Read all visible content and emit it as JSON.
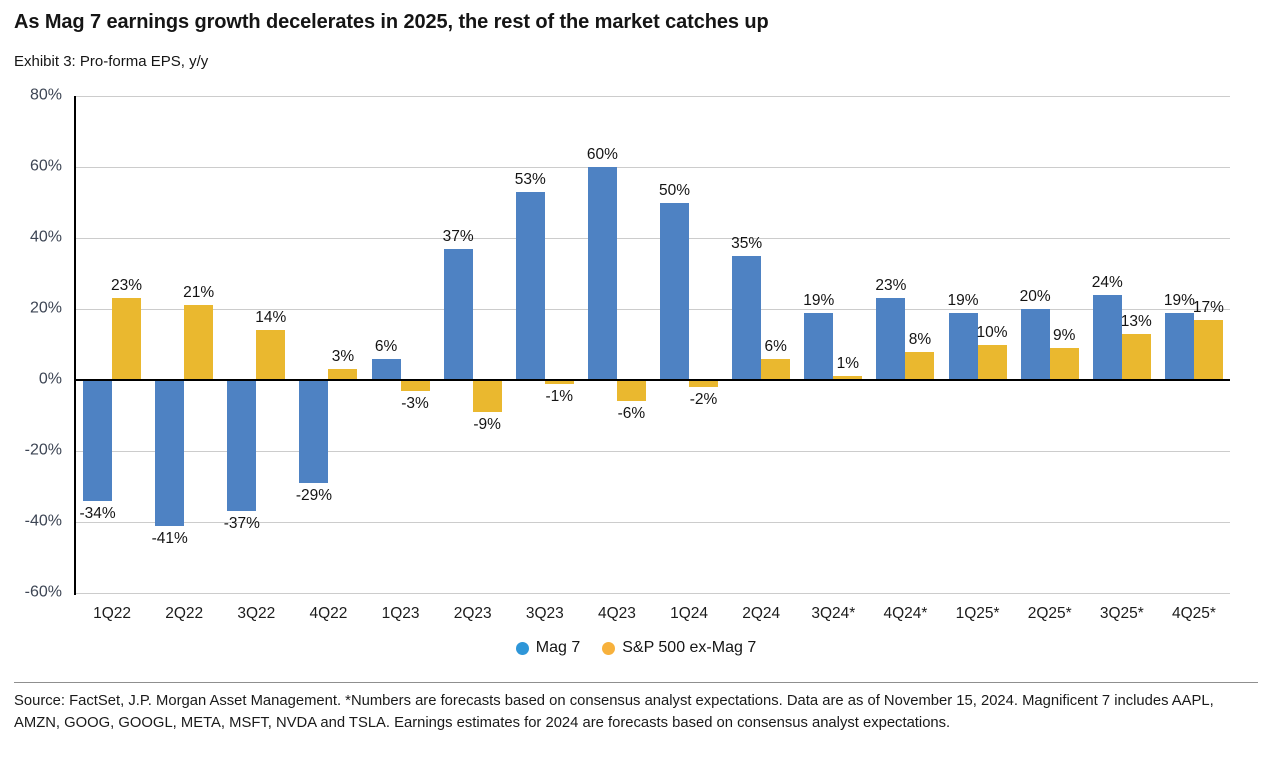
{
  "header": {
    "title": "As Mag 7 earnings growth decelerates in 2025, the rest of the market catches up",
    "subtitle": "Exhibit 3: Pro-forma EPS, y/y"
  },
  "chart_data": {
    "type": "bar",
    "title": "As Mag 7 earnings growth decelerates in 2025, the rest of the market catches up",
    "subtitle": "Exhibit 3: Pro-forma EPS, y/y",
    "categories": [
      "1Q22",
      "2Q22",
      "3Q22",
      "4Q22",
      "1Q23",
      "2Q23",
      "3Q23",
      "4Q23",
      "1Q24",
      "2Q24",
      "3Q24*",
      "4Q24*",
      "1Q25*",
      "2Q25*",
      "3Q25*",
      "4Q25*"
    ],
    "series": [
      {
        "name": "Mag 7",
        "bar_color": "#4E82C3",
        "legend_color": "#2E96D8",
        "values": [
          -34,
          -41,
          -37,
          -29,
          6,
          37,
          53,
          60,
          50,
          35,
          19,
          23,
          19,
          20,
          24,
          19
        ]
      },
      {
        "name": "S&P 500 ex-Mag 7",
        "bar_color": "#EAB82F",
        "legend_color": "#F7B13C",
        "values": [
          23,
          21,
          14,
          3,
          -3,
          -9,
          -1,
          -6,
          -2,
          6,
          1,
          8,
          10,
          9,
          13,
          17
        ]
      }
    ],
    "value_label_suffix": "%",
    "xlabel": "",
    "ylabel": "",
    "ylim": [
      -60,
      80
    ],
    "yticks": [
      80,
      60,
      40,
      20,
      0,
      -20,
      -40,
      -60
    ],
    "ytick_labels": [
      "80%",
      "60%",
      "40%",
      "20%",
      "0%",
      "-20%",
      "-40%",
      "-60%"
    ],
    "grid": true,
    "gridline_color": "#cccccc",
    "zero_line_color": "#000000",
    "legend_position": "bottom"
  },
  "footer": {
    "source_text": "Source: FactSet, J.P. Morgan Asset Management. *Numbers are forecasts based on consensus analyst expectations. Data are as of November 15, 2024. Magnificent 7 includes AAPL, AMZN, GOOG, GOOGL, META, MSFT, NVDA and TSLA. Earnings estimates for 2024 are forecasts based on consensus analyst expectations."
  }
}
